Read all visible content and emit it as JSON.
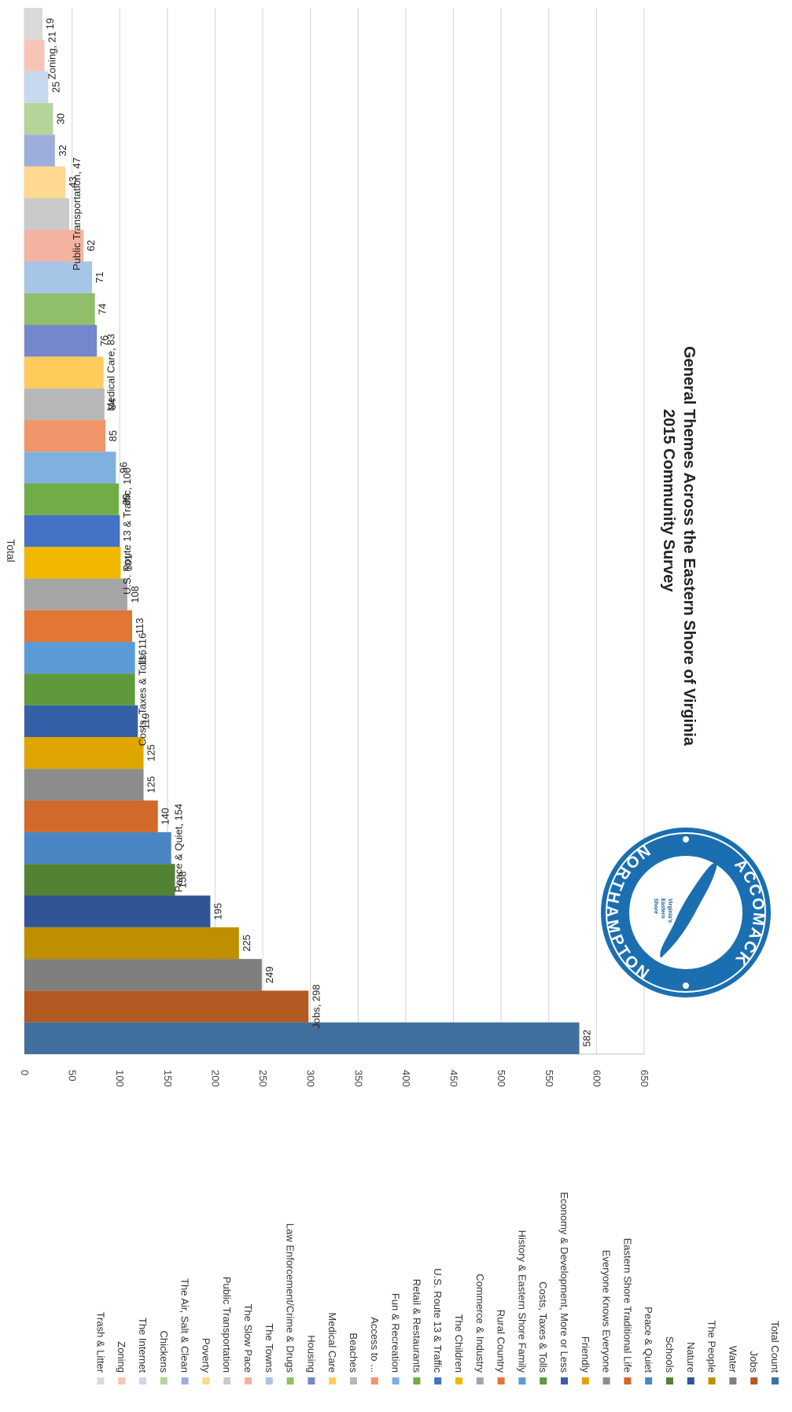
{
  "chart_data": {
    "type": "bar",
    "title": "General Themes Across the Eastern Shore of Virginia",
    "subtitle": "2015 Community Survey",
    "xlabel": "Total",
    "ylabel": "",
    "ylim": [
      0,
      650
    ],
    "yticks": [
      0,
      50,
      100,
      150,
      200,
      250,
      300,
      350,
      400,
      450,
      500,
      550,
      600,
      650
    ],
    "grid": true,
    "legend_position": "right",
    "series": [
      {
        "name": "Total Count",
        "value": 582,
        "label": "582",
        "color": "#41709f"
      },
      {
        "name": "Jobs",
        "value": 298,
        "label": "Jobs, 298",
        "color": "#b25a22"
      },
      {
        "name": "Water",
        "value": 249,
        "label": "249",
        "color": "#7f7f7f"
      },
      {
        "name": "The People",
        "value": 225,
        "label": "225",
        "color": "#bf8f00"
      },
      {
        "name": "Nature",
        "value": 195,
        "label": "195",
        "color": "#2f5597"
      },
      {
        "name": "Schools",
        "value": 158,
        "label": "158",
        "color": "#548235"
      },
      {
        "name": "Peace & Quiet",
        "value": 154,
        "label": "Peace & Quiet, 154",
        "color": "#4a86c5"
      },
      {
        "name": "Eastern Shore Traditional Life",
        "value": 140,
        "label": "140",
        "color": "#d0692a"
      },
      {
        "name": "Everyone Knows Everyone",
        "value": 125,
        "label": "125",
        "color": "#8c8c8c"
      },
      {
        "name": "Friendly",
        "value": 125,
        "label": "125",
        "color": "#dfa500"
      },
      {
        "name": "Economy & Development, More or Less",
        "value": 119,
        "label": "119",
        "color": "#3560a8"
      },
      {
        "name": "Costs, Taxes & Tolls",
        "value": 116,
        "label": "Costs, Taxes & Tolls, 116",
        "color": "#5e9a3c"
      },
      {
        "name": "History & Eastern Shore Family",
        "value": 116,
        "label": "116",
        "color": "#5b9bd5"
      },
      {
        "name": "Rural Country",
        "value": 113,
        "label": "113",
        "color": "#e27634"
      },
      {
        "name": "Commerce & Industry",
        "value": 108,
        "label": "108",
        "color": "#a5a5a5"
      },
      {
        "name": "The Children",
        "value": 101,
        "label": "101",
        "color": "#f2b800"
      },
      {
        "name": "U.S. Route 13 & Traffic",
        "value": 100,
        "label": "U.S. Route 13 & Traffic, 100",
        "color": "#4472c4"
      },
      {
        "name": "Retail & Restaurants",
        "value": 99,
        "label": "99",
        "color": "#70ad47"
      },
      {
        "name": "Fun & Recreation",
        "value": 96,
        "label": "96",
        "color": "#7fb0e0"
      },
      {
        "name": "Access to ...",
        "value": 85,
        "label": "85",
        "color": "#f0966a"
      },
      {
        "name": "Beaches",
        "value": 84,
        "label": "84",
        "color": "#b7b7b7"
      },
      {
        "name": "Medical Care",
        "value": 83,
        "label": "Medical Care, 83",
        "color": "#ffcc5c"
      },
      {
        "name": "Housing",
        "value": 76,
        "label": "76",
        "color": "#7486cc"
      },
      {
        "name": "Law Enforcement/Crime & Drugs",
        "value": 74,
        "label": "74",
        "color": "#8fbf6a"
      },
      {
        "name": "The Towns",
        "value": 71,
        "label": "71",
        "color": "#a6c6e8"
      },
      {
        "name": "The Slow Pace",
        "value": 62,
        "label": "62",
        "color": "#f4b3a0"
      },
      {
        "name": "Public Transportation",
        "value": 47,
        "label": "Public Transportation, 47",
        "color": "#c9c9c9"
      },
      {
        "name": "Poverty",
        "value": 43,
        "label": "43",
        "color": "#ffd98f"
      },
      {
        "name": "The Air, Salt & Clean",
        "value": 32,
        "label": "32",
        "color": "#9eaedc"
      },
      {
        "name": "Chickens",
        "value": 30,
        "label": "30",
        "color": "#b4d49a"
      },
      {
        "name": "The Internet",
        "value": 25,
        "label": "25",
        "color": "#c8d8ee"
      },
      {
        "name": "Zoning",
        "value": 21,
        "label": "Zoning, 21",
        "color": "#f7c4b8"
      },
      {
        "name": "Trash & Litter",
        "value": 19,
        "label": "19",
        "color": "#d9d9d9"
      }
    ]
  },
  "logo": {
    "text_top": "ACCOMACK",
    "text_bottom": "NORTHAMPTON",
    "inner_lines": [
      "Virginia's",
      "Eastern",
      "Shore"
    ]
  }
}
